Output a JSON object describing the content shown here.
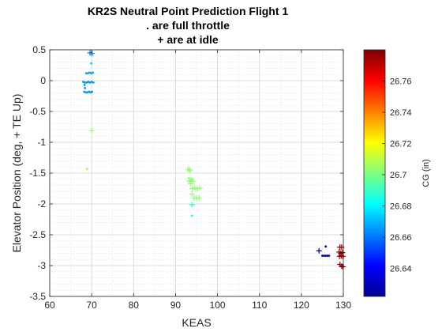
{
  "chart_data": {
    "type": "scatter",
    "title_lines": [
      "KR2S Neutral Point Prediction Flight 1",
      ". are full throttle",
      "+ are at idle"
    ],
    "xlabel": "KEAS",
    "ylabel": "Elevator Position (deg, + TE Up)",
    "xlim": [
      60,
      130
    ],
    "ylim": [
      -3.5,
      0.5
    ],
    "xticks": [
      "60",
      "70",
      "80",
      "90",
      "100",
      "110",
      "120",
      "130"
    ],
    "yticks": [
      "0.5",
      "0",
      "-0.5",
      "-1",
      "-1.5",
      "-2",
      "-2.5",
      "-3",
      "-3.5"
    ],
    "grid": true,
    "minor_grid": true,
    "colorbar": {
      "label": "CG (in)",
      "range": [
        26.622,
        26.78
      ],
      "ticks": [
        "26.64",
        "26.66",
        "26.68",
        "26.7",
        "26.72",
        "26.74",
        "26.76"
      ],
      "colormap": "jet"
    },
    "series": [
      {
        "marker": "dot",
        "points": [
          {
            "x": 68.0,
            "y": -0.02,
            "cg": 26.665
          },
          {
            "x": 68.4,
            "y": -0.03,
            "cg": 26.665
          },
          {
            "x": 68.8,
            "y": -0.03,
            "cg": 26.665
          },
          {
            "x": 69.2,
            "y": -0.02,
            "cg": 26.665
          },
          {
            "x": 69.6,
            "y": -0.03,
            "cg": 26.665
          },
          {
            "x": 70.0,
            "y": -0.02,
            "cg": 26.665
          },
          {
            "x": 70.4,
            "y": -0.03,
            "cg": 26.665
          },
          {
            "x": 68.2,
            "y": -0.18,
            "cg": 26.665
          },
          {
            "x": 68.6,
            "y": -0.19,
            "cg": 26.665
          },
          {
            "x": 69.0,
            "y": -0.19,
            "cg": 26.665
          },
          {
            "x": 69.4,
            "y": -0.18,
            "cg": 26.665
          },
          {
            "x": 69.8,
            "y": -0.19,
            "cg": 26.665
          },
          {
            "x": 70.1,
            "y": -0.18,
            "cg": 26.665
          },
          {
            "x": 68.3,
            "y": -0.07,
            "cg": 26.665
          },
          {
            "x": 68.4,
            "y": -0.12,
            "cg": 26.665
          },
          {
            "x": 68.7,
            "y": 0.12,
            "cg": 26.668
          },
          {
            "x": 69.1,
            "y": 0.12,
            "cg": 26.668
          },
          {
            "x": 69.5,
            "y": 0.13,
            "cg": 26.668
          },
          {
            "x": 69.9,
            "y": 0.12,
            "cg": 26.668
          },
          {
            "x": 70.3,
            "y": 0.13,
            "cg": 26.668
          },
          {
            "x": 69.8,
            "y": 0.45,
            "cg": 26.66
          },
          {
            "x": 70.0,
            "y": 0.44,
            "cg": 26.66
          },
          {
            "x": 69.9,
            "y": 0.28,
            "cg": 26.675
          },
          {
            "x": 68.9,
            "y": -1.43,
            "cg": 26.705
          },
          {
            "x": 93.2,
            "y": -1.58,
            "cg": 26.703
          },
          {
            "x": 93.6,
            "y": -1.62,
            "cg": 26.703
          },
          {
            "x": 94.0,
            "y": -1.6,
            "cg": 26.703
          },
          {
            "x": 93.9,
            "y": -2.19,
            "cg": 26.685
          },
          {
            "x": 125.0,
            "y": -2.84,
            "cg": 26.625
          },
          {
            "x": 125.4,
            "y": -2.84,
            "cg": 26.625
          },
          {
            "x": 125.8,
            "y": -2.84,
            "cg": 26.625
          },
          {
            "x": 126.2,
            "y": -2.84,
            "cg": 26.625
          },
          {
            "x": 126.6,
            "y": -2.84,
            "cg": 26.625
          },
          {
            "x": 125.8,
            "y": -2.69,
            "cg": 26.627
          }
        ]
      },
      {
        "marker": "plus",
        "points": [
          {
            "x": 69.6,
            "y": 0.45,
            "cg": 26.662
          },
          {
            "x": 70.1,
            "y": 0.44,
            "cg": 26.662
          },
          {
            "x": 70.0,
            "y": -0.81,
            "cg": 26.705
          },
          {
            "x": 93.0,
            "y": -1.44,
            "cg": 26.703
          },
          {
            "x": 93.4,
            "y": -1.45,
            "cg": 26.703
          },
          {
            "x": 93.3,
            "y": -1.63,
            "cg": 26.703
          },
          {
            "x": 93.7,
            "y": -1.6,
            "cg": 26.703
          },
          {
            "x": 94.1,
            "y": -1.63,
            "cg": 26.703
          },
          {
            "x": 93.6,
            "y": -1.67,
            "cg": 26.703
          },
          {
            "x": 94.0,
            "y": -1.75,
            "cg": 26.703
          },
          {
            "x": 94.6,
            "y": -1.74,
            "cg": 26.703
          },
          {
            "x": 95.2,
            "y": -1.75,
            "cg": 26.703
          },
          {
            "x": 95.8,
            "y": -1.74,
            "cg": 26.703
          },
          {
            "x": 93.9,
            "y": -1.84,
            "cg": 26.703
          },
          {
            "x": 94.4,
            "y": -1.9,
            "cg": 26.703
          },
          {
            "x": 95.0,
            "y": -1.9,
            "cg": 26.703
          },
          {
            "x": 95.6,
            "y": -1.9,
            "cg": 26.703
          },
          {
            "x": 93.9,
            "y": -2.01,
            "cg": 26.688
          },
          {
            "x": 124.2,
            "y": -2.76,
            "cg": 26.625
          },
          {
            "x": 129.2,
            "y": -2.7,
            "cg": 26.779
          },
          {
            "x": 129.6,
            "y": -2.7,
            "cg": 26.779
          },
          {
            "x": 129.0,
            "y": -2.78,
            "cg": 26.779
          },
          {
            "x": 129.4,
            "y": -2.8,
            "cg": 26.779
          },
          {
            "x": 129.8,
            "y": -2.79,
            "cg": 26.779
          },
          {
            "x": 129.1,
            "y": -2.85,
            "cg": 26.779
          },
          {
            "x": 129.5,
            "y": -2.84,
            "cg": 26.779
          },
          {
            "x": 129.9,
            "y": -2.85,
            "cg": 26.779
          },
          {
            "x": 129.2,
            "y": -2.98,
            "cg": 26.779
          },
          {
            "x": 129.6,
            "y": -3.01,
            "cg": 26.779
          },
          {
            "x": 129.9,
            "y": -3.02,
            "cg": 26.779
          }
        ]
      }
    ]
  }
}
